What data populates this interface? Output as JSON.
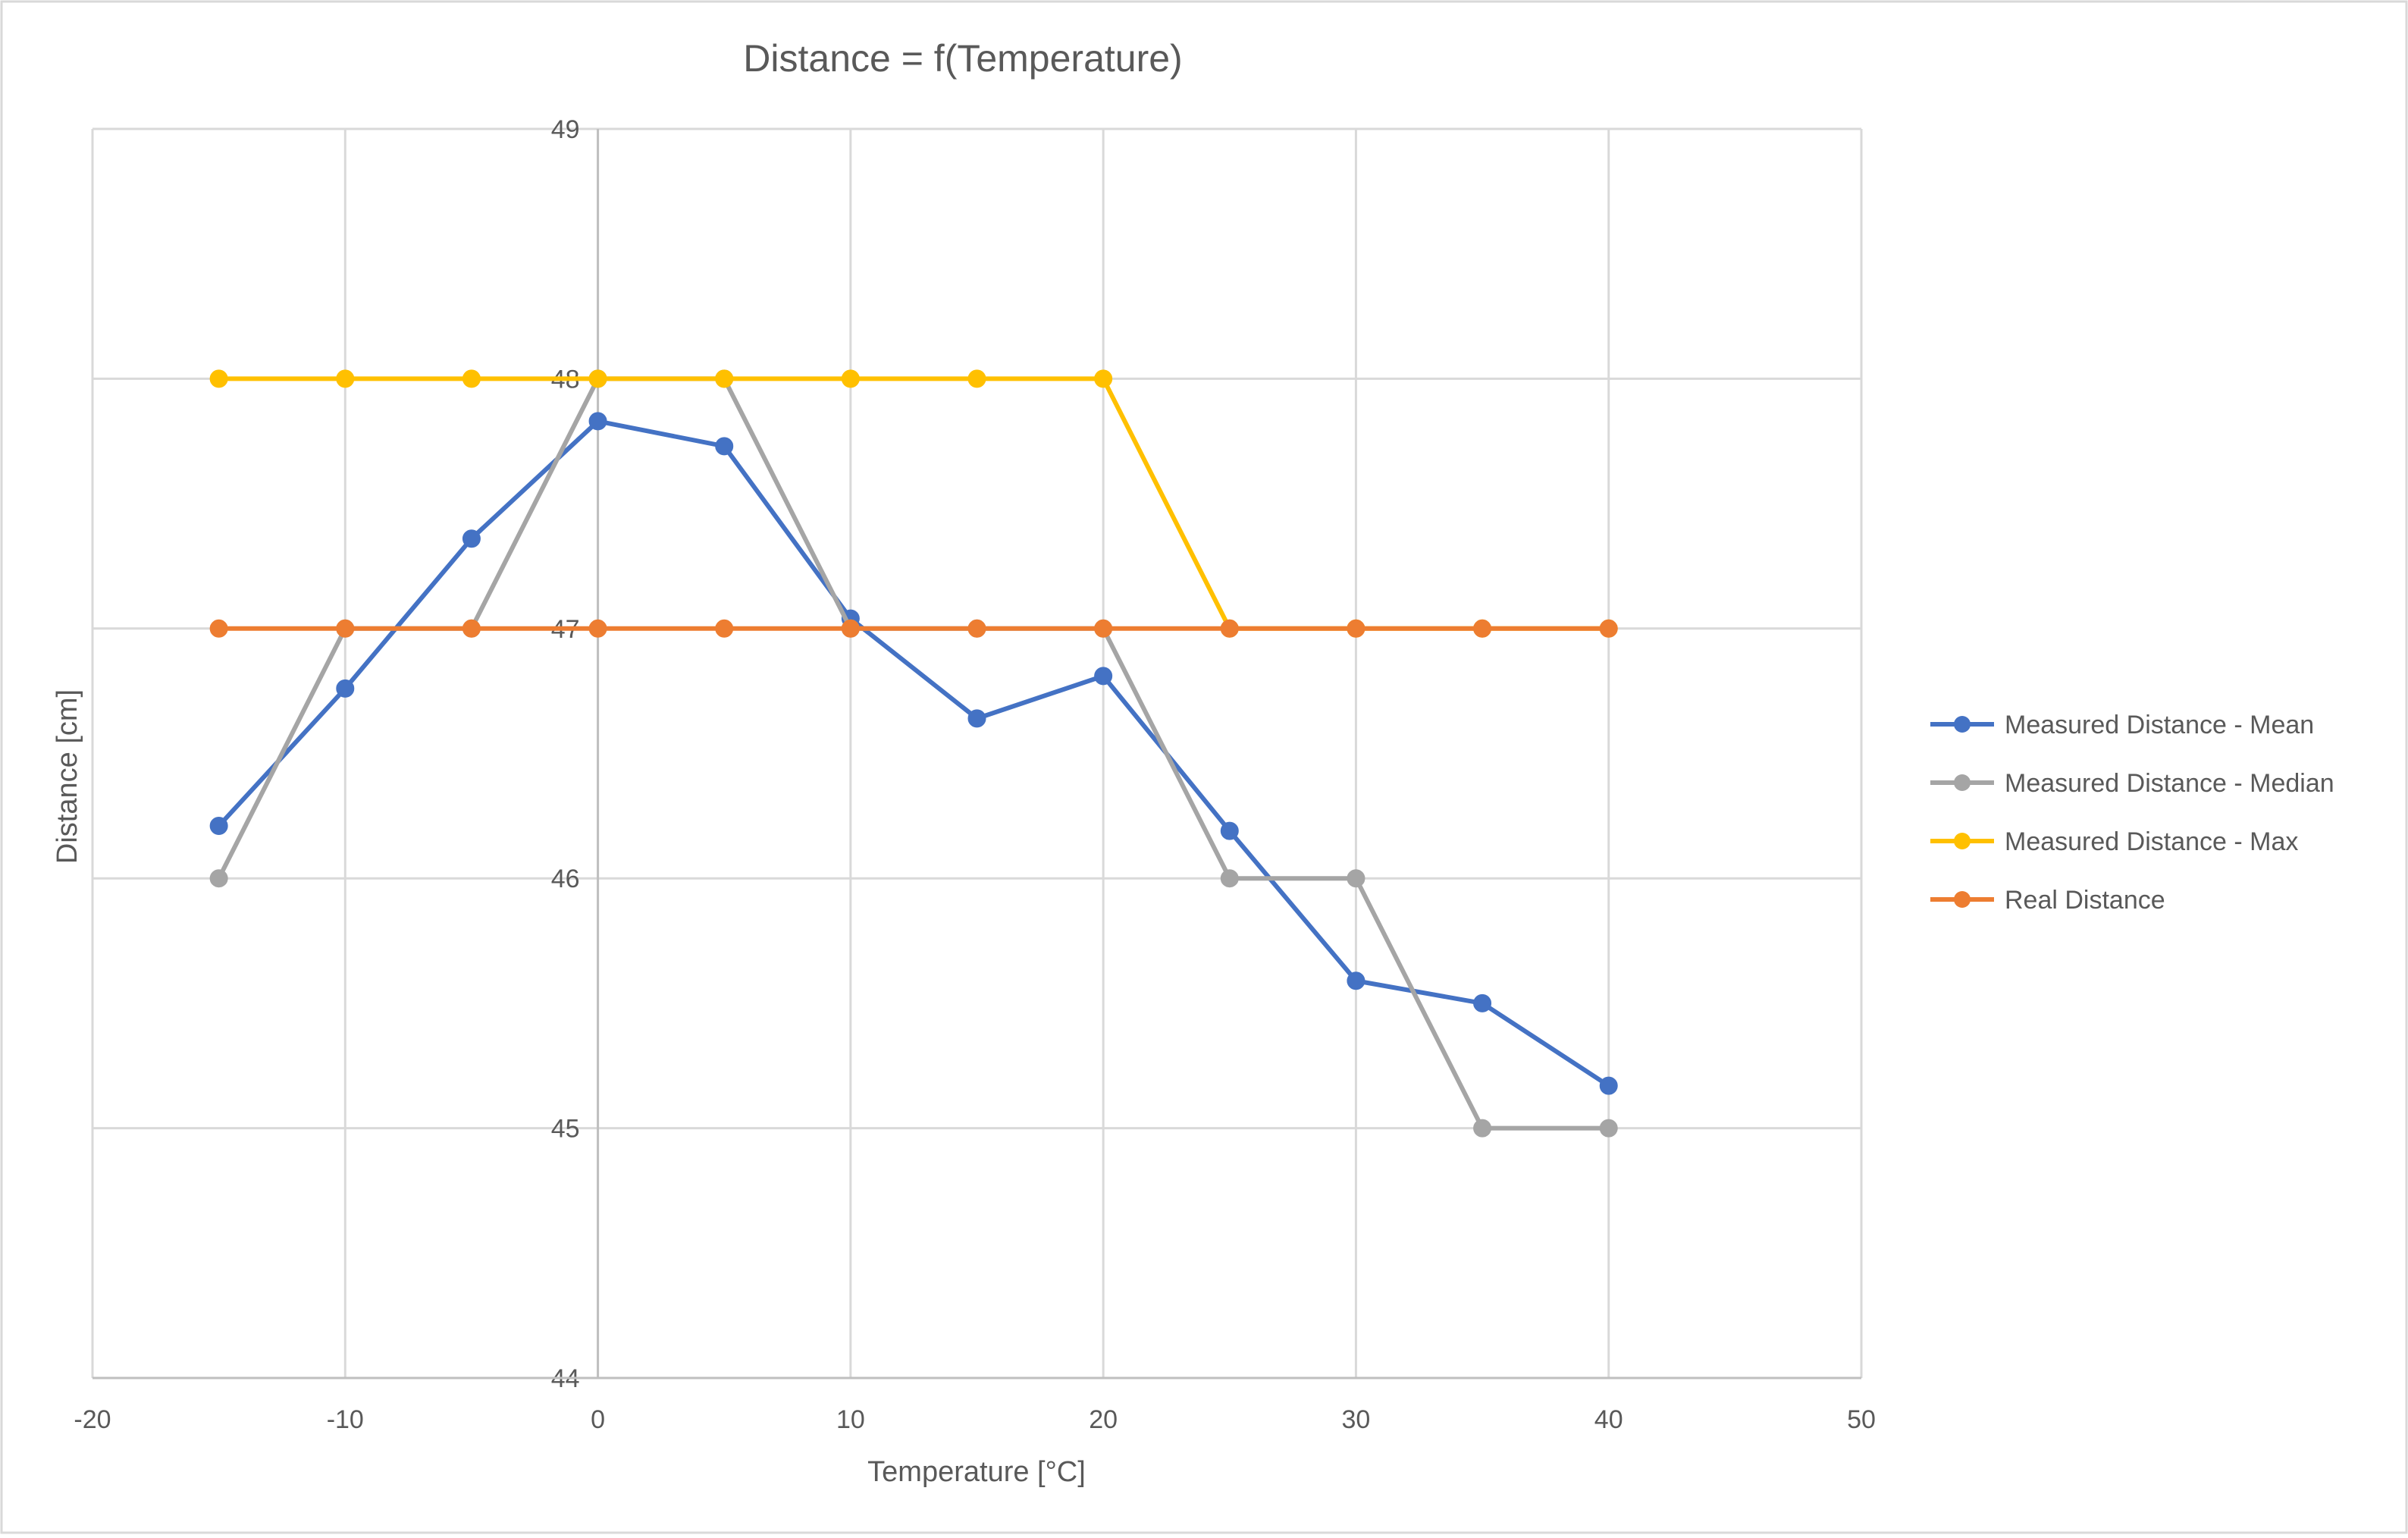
{
  "chart_data": {
    "type": "scatter",
    "title": "Distance = f(Temperature)",
    "xlabel": "Temperature [°C]",
    "ylabel": "Distance [cm]",
    "xlim": [
      -20,
      50
    ],
    "ylim": [
      44,
      49
    ],
    "x_ticks": [
      -20,
      -10,
      0,
      10,
      20,
      30,
      40,
      50
    ],
    "y_ticks": [
      44,
      45,
      46,
      47,
      48,
      49
    ],
    "grid": true,
    "legend_position": "right",
    "x": [
      -15,
      -10,
      -5,
      0,
      5,
      10,
      15,
      20,
      25,
      30,
      35,
      40
    ],
    "series": [
      {
        "name": "Measured Distance - Mean",
        "color": "#4472C4",
        "values": [
          46.21,
          46.76,
          47.36,
          47.83,
          47.73,
          47.04,
          46.64,
          46.81,
          46.19,
          45.59,
          45.5,
          45.17
        ]
      },
      {
        "name": "Measured Distance - Median",
        "color": "#A5A5A5",
        "values": [
          46,
          47,
          47,
          48,
          48,
          47,
          47,
          47,
          46,
          46,
          45,
          45
        ]
      },
      {
        "name": "Measured Distance - Max",
        "color": "#FFC000",
        "values": [
          48,
          48,
          48,
          48,
          48,
          48,
          48,
          48,
          47,
          47,
          47,
          47
        ]
      },
      {
        "name": "Real Distance",
        "color": "#ED7D31",
        "values": [
          47,
          47,
          47,
          47,
          47,
          47,
          47,
          47,
          47,
          47,
          47,
          47
        ]
      }
    ]
  }
}
